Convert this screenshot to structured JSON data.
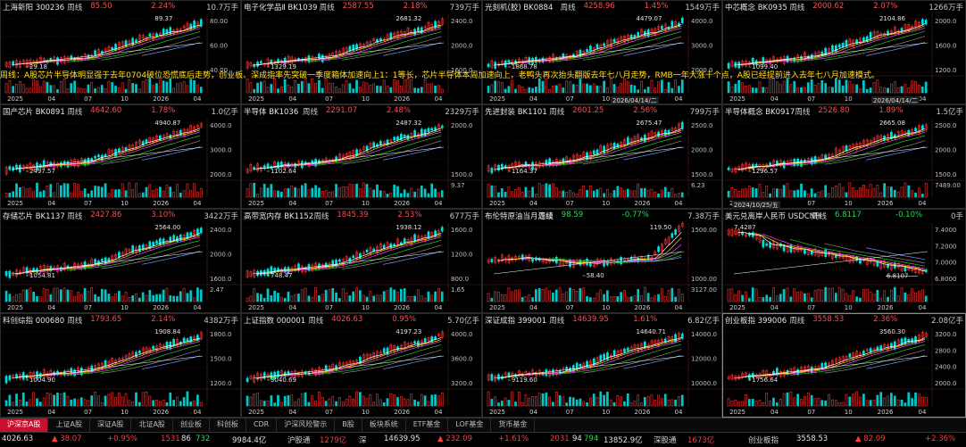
{
  "overlay_text": "周线：A股芯片半导体明显强于去年0704破位恐慌底后走势，创业板、深成指率先突破一季度箱体加速向上1：1等长，芯片半导体本周加速向上，老鸭头再次抬头翻版去年七八月走势，RMB一年大涨十个点，A股已经提前进入去年七八月加速模式。",
  "date_boxes": [
    "2026/04/14/二",
    "2026/04/14/二",
    "2024/10/25/五"
  ],
  "panels": [
    {
      "name": "上海新阳 300236",
      "cycle": "周线",
      "price": "85.50",
      "change": "2.24%",
      "vol": "10.7万手",
      "dir": "up",
      "high_label": "89.37",
      "low_label": "29.18",
      "y_labels": [
        "80.00",
        "60.00",
        "40.00"
      ],
      "vol_label": "",
      "x_labels": [
        "2025",
        "04",
        "07",
        "10",
        "2026",
        "04"
      ]
    },
    {
      "name": "电子化学品Ⅱ BK1039",
      "cycle": "周线",
      "price": "2587.55",
      "change": "2.18%",
      "vol": "739万手",
      "dir": "up",
      "high_label": "2681.32",
      "low_label": "1329.19",
      "y_labels": [
        "2400.0",
        "2000.0",
        "1600.0"
      ],
      "vol_label": "",
      "x_labels": [
        "2025",
        "04",
        "07",
        "10",
        "2026",
        "04"
      ]
    },
    {
      "name": "光刻机(胶) BK0884",
      "cycle": "周线",
      "price": "4258.96",
      "change": "1.45%",
      "vol": "1549万手",
      "dir": "up",
      "high_label": "4479.07",
      "low_label": "1868.78",
      "y_labels": [
        "4000.0",
        "3000.0",
        "2000.0"
      ],
      "vol_label": "",
      "x_labels": [
        "2025",
        "04",
        "07",
        "10",
        "2026",
        "04"
      ]
    },
    {
      "name": "中芯概念 BK0935",
      "cycle": "周线",
      "price": "2000.62",
      "change": "2.07%",
      "vol": "1266万手",
      "dir": "up",
      "high_label": "2104.86",
      "low_label": "1099.40",
      "y_labels": [
        "2000.0",
        "1600.0",
        "1200.0"
      ],
      "vol_label": "",
      "x_labels": [
        "2025",
        "04",
        "07",
        "10",
        "2026",
        "04"
      ]
    },
    {
      "name": "国产芯片 BK0891",
      "cycle": "周线",
      "price": "4642.60",
      "change": "1.78%",
      "vol": "1.0亿手",
      "dir": "up",
      "high_label": "4940.87",
      "low_label": "2497.57",
      "y_labels": [
        "4000.0",
        "3000.0",
        "2000.0"
      ],
      "vol_label": "",
      "x_labels": [
        "2025",
        "04",
        "07",
        "10",
        "2026",
        "04"
      ]
    },
    {
      "name": "半导体 BK1036",
      "cycle": "周线",
      "price": "2291.07",
      "change": "2.48%",
      "vol": "2329万手",
      "dir": "up",
      "high_label": "2487.32",
      "low_label": "1102.64",
      "y_labels": [
        "2000.0",
        "1500.0"
      ],
      "vol_label": "9.37",
      "x_labels": [
        "2025",
        "04",
        "07",
        "10",
        "2026",
        "04"
      ]
    },
    {
      "name": "先进封装 BK1101",
      "cycle": "周线",
      "price": "2601.25",
      "change": "2.56%",
      "vol": "799万手",
      "dir": "up",
      "high_label": "2675.47",
      "low_label": "1164.37",
      "y_labels": [
        "2500.0",
        "2000.0",
        "1500.0"
      ],
      "vol_label": "6.23",
      "x_labels": [
        "2025",
        "04",
        "07",
        "10",
        "2026",
        "04"
      ]
    },
    {
      "name": "半导体概念 BK0917",
      "cycle": "周线",
      "price": "2526.80",
      "change": "1.89%",
      "vol": "1.5亿手",
      "dir": "up",
      "high_label": "2665.08",
      "low_label": "1296.57",
      "y_labels": [
        "2500.0",
        "2000.0",
        "1500.0"
      ],
      "vol_label": "7489.00",
      "x_labels": [
        "2025",
        "04",
        "07",
        "10",
        "2026",
        "04"
      ]
    },
    {
      "name": "存储芯片 BK1137",
      "cycle": "周线",
      "price": "2427.86",
      "change": "3.10%",
      "vol": "3422万手",
      "dir": "up",
      "high_label": "2564.00",
      "low_label": "1054.81",
      "y_labels": [
        "2400.0",
        "2000.0",
        "1600.0"
      ],
      "vol_label": "2.47",
      "x_labels": [
        "2025",
        "04",
        "07",
        "10",
        "2026",
        "04"
      ]
    },
    {
      "name": "高带宽内存 BK1152",
      "cycle": "周线",
      "price": "1845.39",
      "change": "2.53%",
      "vol": "677万手",
      "dir": "up",
      "high_label": "1938.12",
      "low_label": "748.47",
      "y_labels": [
        "1600.0",
        "1200.0",
        "800.0"
      ],
      "vol_label": "1.65",
      "x_labels": [
        "2025",
        "04",
        "07",
        "10",
        "2026",
        "04"
      ]
    },
    {
      "name": "布伦特原油当月连续",
      "cycle": "周线",
      "price": "98.59",
      "change": "-0.77%",
      "vol": "7.38万手",
      "dir": "down",
      "high_label": "119.50",
      "low_label": "58.40",
      "y_labels": [
        "1500.00",
        "1000.00"
      ],
      "vol_label": "3127.00",
      "x_labels": [
        "2025",
        "04",
        "07",
        "10",
        "2026",
        "04"
      ]
    },
    {
      "name": "美元兑离岸人民币 USDCNH",
      "cycle": "周线",
      "price": "6.8117",
      "change": "-0.10%",
      "vol": "0手",
      "dir": "down",
      "high_label": "7.4287",
      "low_label": "6.8107",
      "y_labels": [
        "7.4000",
        "7.2000",
        "7.0000",
        "6.8000"
      ],
      "vol_label": "",
      "x_labels": [
        "2025",
        "04",
        "07",
        "10",
        "2026",
        "04"
      ]
    },
    {
      "name": "科创综指 000680",
      "cycle": "周线",
      "price": "1793.65",
      "change": "2.14%",
      "vol": "4382万手",
      "dir": "up",
      "high_label": "1908.84",
      "low_label": "1004.90",
      "y_labels": [
        "1800.0",
        "1500.0",
        "1200.0"
      ],
      "vol_label": "",
      "x_labels": [
        "2025",
        "04",
        "07",
        "10",
        "2026",
        "04"
      ]
    },
    {
      "name": "上证指数 000001",
      "cycle": "周线",
      "price": "4026.63",
      "change": "0.95%",
      "vol": "5.70亿手",
      "dir": "up",
      "high_label": "4197.23",
      "low_label": "3040.69",
      "y_labels": [
        "4000.0",
        "3600.0",
        "3200.0"
      ],
      "vol_label": "",
      "x_labels": [
        "2025",
        "04",
        "07",
        "10",
        "2026",
        "04"
      ]
    },
    {
      "name": "深证成指 399001",
      "cycle": "周线",
      "price": "14639.95",
      "change": "1.61%",
      "vol": "6.82亿手",
      "dir": "up",
      "high_label": "14640.71",
      "low_label": "9119.60",
      "y_labels": [
        "14000.0",
        "12000.0",
        "10000.0"
      ],
      "vol_label": "",
      "x_labels": [
        "2025",
        "04",
        "07",
        "10",
        "2026",
        "04"
      ]
    },
    {
      "name": "创业板指 399006",
      "cycle": "周线",
      "price": "3558.53",
      "chg_note": "",
      "change": "2.36%",
      "vol": "2.08亿手",
      "dir": "up",
      "high_label": "3560.30",
      "low_label": "1756.64",
      "y_labels": [
        "3200.0",
        "2800.0",
        "2400.0",
        "2000.0"
      ],
      "vol_label": "",
      "x_labels": [
        "2025",
        "04",
        "07",
        "10",
        "2026",
        "04"
      ]
    }
  ],
  "tabs": [
    "沪深京A股",
    "上证A股",
    "深证A股",
    "北证A股",
    "创业板",
    "科创板",
    "CDR",
    "沪深风险警示",
    "B股",
    "板块系统",
    "ETF基金",
    "LOF基金",
    "货币基金"
  ],
  "status": {
    "sh_index": "4026.63",
    "sh_change": "▲ 38.07",
    "sh_pct": "+0.95%",
    "sh_up": "1531",
    "sh_flat": "86",
    "sh_down": "732",
    "sh_amount": "9984.4亿",
    "hgt_label": "沪股通",
    "hgt_value": "1279亿",
    "sz_label": "深",
    "sz_index": "14639.95",
    "sz_change": "▲ 232.09",
    "sz_pct": "+1.61%",
    "sz_up": "2031",
    "sz_flat": "94",
    "sz_down": "794",
    "sz_amount": "13852.9亿",
    "sgt_label": "深股通",
    "sgt_value": "1673亿",
    "cyb_label": "创业板指",
    "cyb_index": "3558.53",
    "cyb_change": "▲ 82.09",
    "cyb_pct": "+2.36%"
  }
}
